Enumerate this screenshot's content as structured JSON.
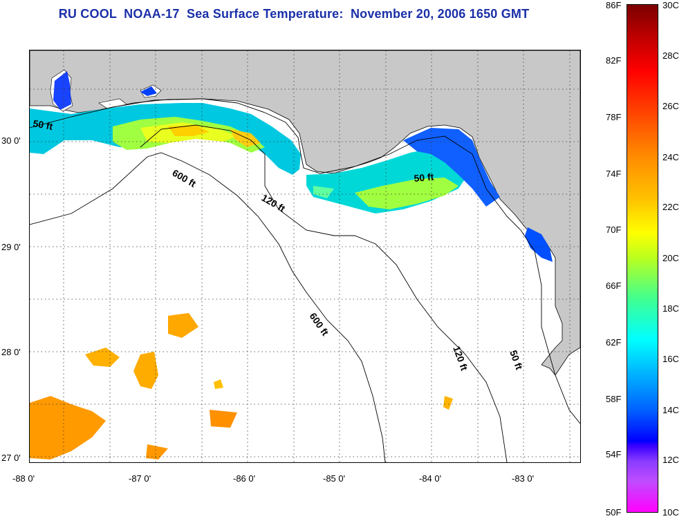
{
  "title": "RU COOL  NOAA-17  Sea Surface Temperature:  November 20, 2006 1650 GMT",
  "map": {
    "lon_ticks": [
      "-88 0'",
      "-87 0'",
      "-86 0'",
      "-85 0'",
      "-84 0'",
      "-83 0'"
    ],
    "lat_ticks": [
      "30 0'",
      "29 0'",
      "28 0'",
      "27 0'"
    ],
    "contours": [
      {
        "label": "50 ft"
      },
      {
        "label": "600 ft"
      },
      {
        "label": "120 ft"
      },
      {
        "label": "50 ft"
      },
      {
        "label": "600 ft"
      },
      {
        "label": "120 ft"
      },
      {
        "label": "50 ft"
      }
    ],
    "colors": {
      "land": "#c8c8c8",
      "water": "#ffffff",
      "contour": "#000000"
    }
  },
  "colorbar": {
    "fahrenheit": [
      "86F",
      "82F",
      "78F",
      "74F",
      "70F",
      "66F",
      "62F",
      "58F",
      "54F",
      "50F"
    ],
    "celsius": [
      "30C",
      "28C",
      "26C",
      "24C",
      "22C",
      "20C",
      "18C",
      "16C",
      "14C",
      "12C",
      "10C"
    ]
  }
}
